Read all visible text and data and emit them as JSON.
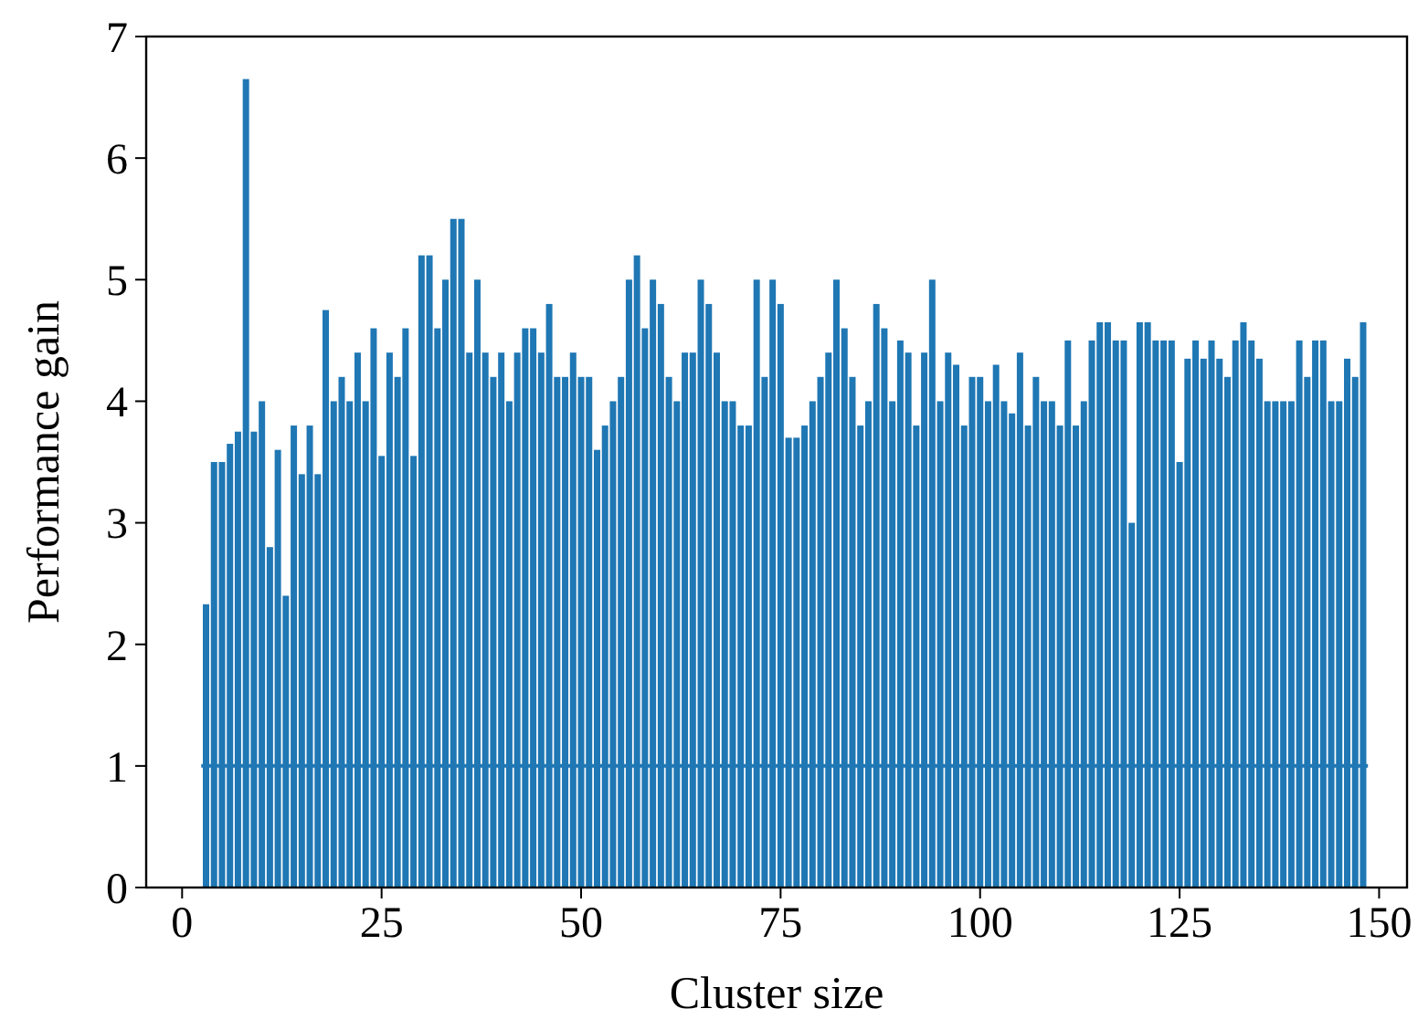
{
  "chart_data": {
    "type": "bar",
    "xlabel": "Cluster size",
    "ylabel": "Performance gain",
    "xlim": [
      -4.5,
      153.5
    ],
    "ylim": [
      0,
      7
    ],
    "xticks": [
      0,
      25,
      50,
      75,
      100,
      125,
      150
    ],
    "yticks": [
      0,
      1,
      2,
      3,
      4,
      5,
      6,
      7
    ],
    "grid": false,
    "series": [
      {
        "color": "#1f77b4",
        "x": [
          3,
          4,
          5,
          6,
          7,
          8,
          9,
          10,
          11,
          12,
          13,
          14,
          15,
          16,
          17,
          18,
          19,
          20,
          21,
          22,
          23,
          24,
          25,
          26,
          27,
          28,
          29,
          30,
          31,
          32,
          33,
          34,
          35,
          36,
          37,
          38,
          39,
          40,
          41,
          42,
          43,
          44,
          45,
          46,
          47,
          48,
          49,
          50,
          51,
          52,
          53,
          54,
          55,
          56,
          57,
          58,
          59,
          60,
          61,
          62,
          63,
          64,
          65,
          66,
          67,
          68,
          69,
          70,
          71,
          72,
          73,
          74,
          75,
          76,
          77,
          78,
          79,
          80,
          81,
          82,
          83,
          84,
          85,
          86,
          87,
          88,
          89,
          90,
          91,
          92,
          93,
          94,
          95,
          96,
          97,
          98,
          99,
          100,
          101,
          102,
          103,
          104,
          105,
          106,
          107,
          108,
          109,
          110,
          111,
          112,
          113,
          114,
          115,
          116,
          117,
          118,
          119,
          120,
          121,
          122,
          123,
          124,
          125,
          126,
          127,
          128,
          129,
          130,
          131,
          132,
          133,
          134,
          135,
          136,
          137,
          138,
          139,
          140,
          141,
          142,
          143,
          144,
          145,
          146,
          147,
          148
        ],
        "values": [
          2.33,
          3.5,
          3.5,
          3.65,
          3.75,
          6.65,
          3.75,
          4.0,
          2.8,
          3.6,
          2.4,
          3.8,
          3.4,
          3.8,
          3.4,
          4.75,
          4.0,
          4.2,
          4.0,
          4.4,
          4.0,
          4.6,
          3.55,
          4.4,
          4.2,
          4.6,
          3.55,
          5.2,
          5.2,
          4.6,
          5.0,
          5.5,
          5.5,
          4.4,
          5.0,
          4.4,
          4.2,
          4.4,
          4.0,
          4.4,
          4.6,
          4.6,
          4.4,
          4.8,
          4.2,
          4.2,
          4.4,
          4.2,
          4.2,
          3.6,
          3.8,
          4.0,
          4.2,
          5.0,
          5.2,
          4.6,
          5.0,
          4.8,
          4.2,
          4.0,
          4.4,
          4.4,
          5.0,
          4.8,
          4.4,
          4.0,
          4.0,
          3.8,
          3.8,
          5.0,
          4.2,
          5.0,
          4.8,
          3.7,
          3.7,
          3.8,
          4.0,
          4.2,
          4.4,
          5.0,
          4.6,
          4.2,
          3.8,
          4.0,
          4.8,
          4.6,
          4.0,
          4.5,
          4.4,
          3.8,
          4.4,
          5.0,
          4.0,
          4.4,
          4.3,
          3.8,
          4.2,
          4.2,
          4.0,
          4.3,
          4.0,
          3.9,
          4.4,
          3.8,
          4.2,
          4.0,
          4.0,
          3.8,
          4.5,
          3.8,
          4.0,
          4.5,
          4.65,
          4.65,
          4.5,
          4.5,
          3.0,
          4.65,
          4.65,
          4.5,
          4.5,
          4.5,
          3.5,
          4.35,
          4.5,
          4.35,
          4.5,
          4.35,
          4.2,
          4.5,
          4.65,
          4.5,
          4.35,
          4.0,
          4.0,
          4.0,
          4.0,
          4.5,
          4.2,
          4.5,
          4.5,
          4.0,
          4.0,
          4.35,
          4.2,
          4.65
        ]
      },
      {
        "type": "line",
        "color": "#1f77b4",
        "x": [
          2.4,
          148.6
        ],
        "values": [
          1,
          1
        ]
      }
    ]
  }
}
